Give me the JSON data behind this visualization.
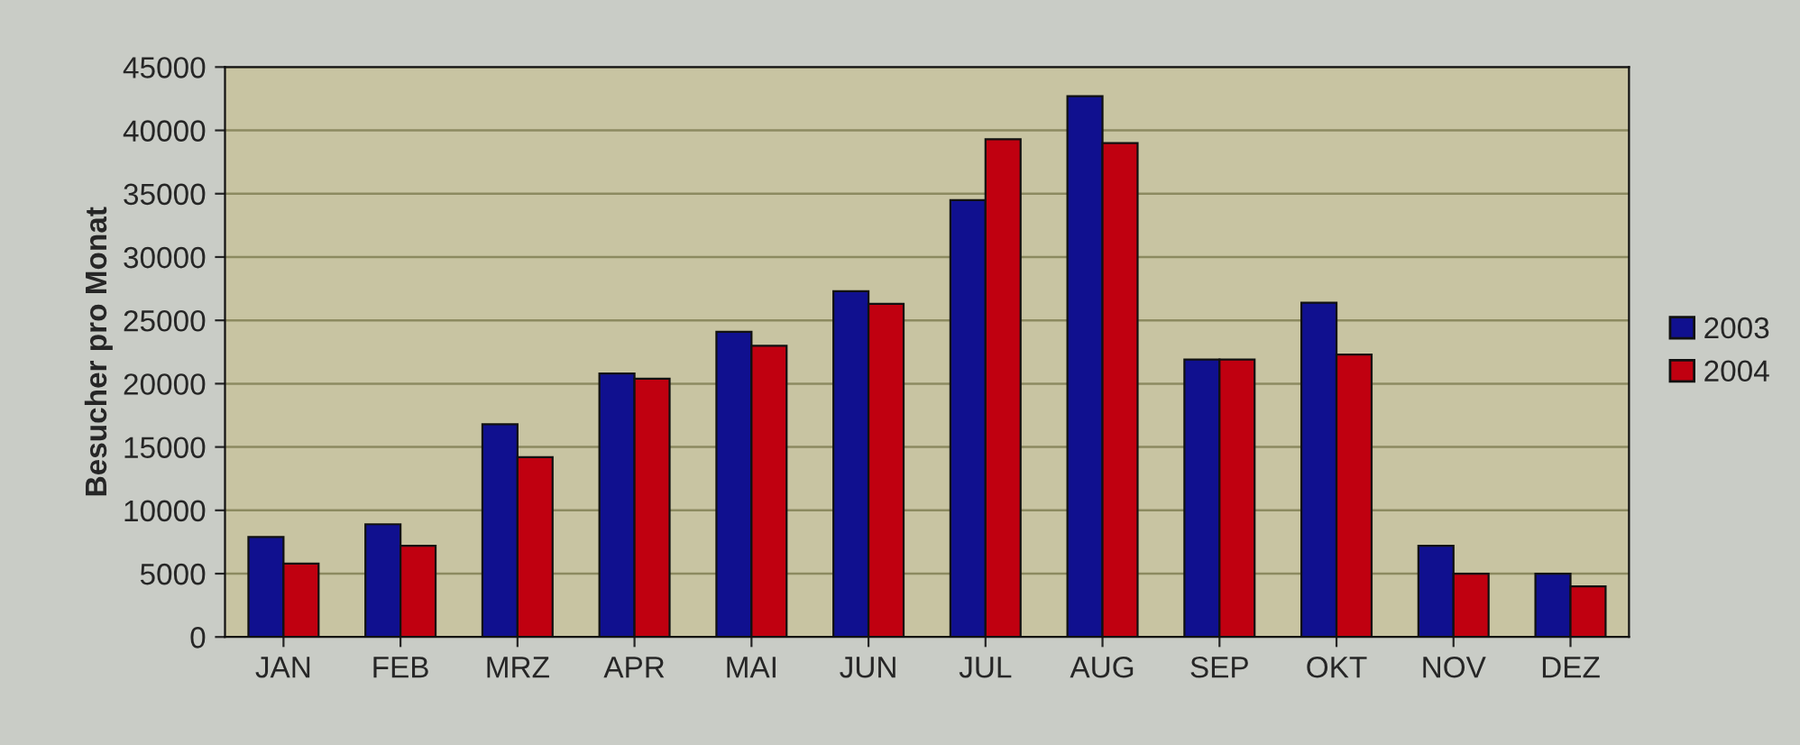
{
  "chart_data": {
    "type": "bar",
    "ylabel": "Besucher pro Monat",
    "categories": [
      "JAN",
      "FEB",
      "MRZ",
      "APR",
      "MAI",
      "JUN",
      "JUL",
      "AUG",
      "SEP",
      "OKT",
      "NOV",
      "DEZ"
    ],
    "series": [
      {
        "name": "2003",
        "color": "#10108f",
        "values": [
          7900,
          8900,
          16800,
          20800,
          24100,
          27300,
          34500,
          42700,
          21900,
          26400,
          7200,
          5000
        ]
      },
      {
        "name": "2004",
        "color": "#c00010",
        "values": [
          5800,
          7200,
          14200,
          20400,
          23000,
          26300,
          39300,
          39000,
          21900,
          22300,
          5000,
          4000
        ]
      }
    ],
    "ylim": [
      0,
      45000
    ],
    "yticks": [
      0,
      5000,
      10000,
      15000,
      20000,
      25000,
      30000,
      35000,
      40000,
      45000
    ],
    "grid": "y",
    "legend": "right"
  }
}
